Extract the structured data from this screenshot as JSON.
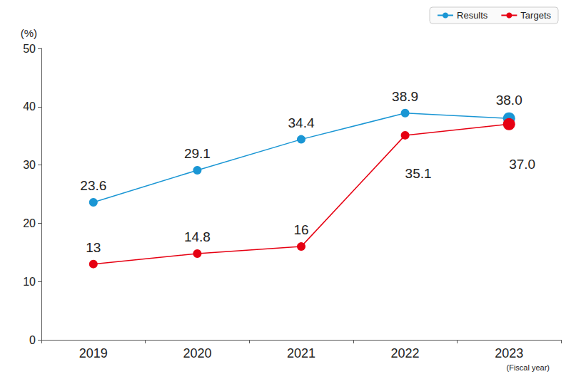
{
  "chart_data": {
    "type": "line",
    "y_label": "(%)",
    "x_label": "(Fiscal year)",
    "categories": [
      "2019",
      "2020",
      "2021",
      "2022",
      "2023"
    ],
    "series": [
      {
        "name": "Results",
        "color": "#1a96d4",
        "values": [
          23.6,
          29.1,
          34.4,
          38.9,
          38.0
        ],
        "value_labels": [
          "23.6",
          "29.1",
          "34.4",
          "38.9",
          "38.0"
        ]
      },
      {
        "name": "Targets",
        "color": "#e60012",
        "values": [
          13,
          14.8,
          16,
          35.1,
          37.0
        ],
        "value_labels": [
          "13",
          "14.8",
          "16",
          "35.1",
          "37.0"
        ]
      }
    ],
    "ylim": [
      0,
      50
    ],
    "yticks": [
      0,
      10,
      20,
      30,
      40,
      50
    ],
    "grid": false,
    "legend": "top-right",
    "data_labels": true,
    "marker": "circle"
  }
}
